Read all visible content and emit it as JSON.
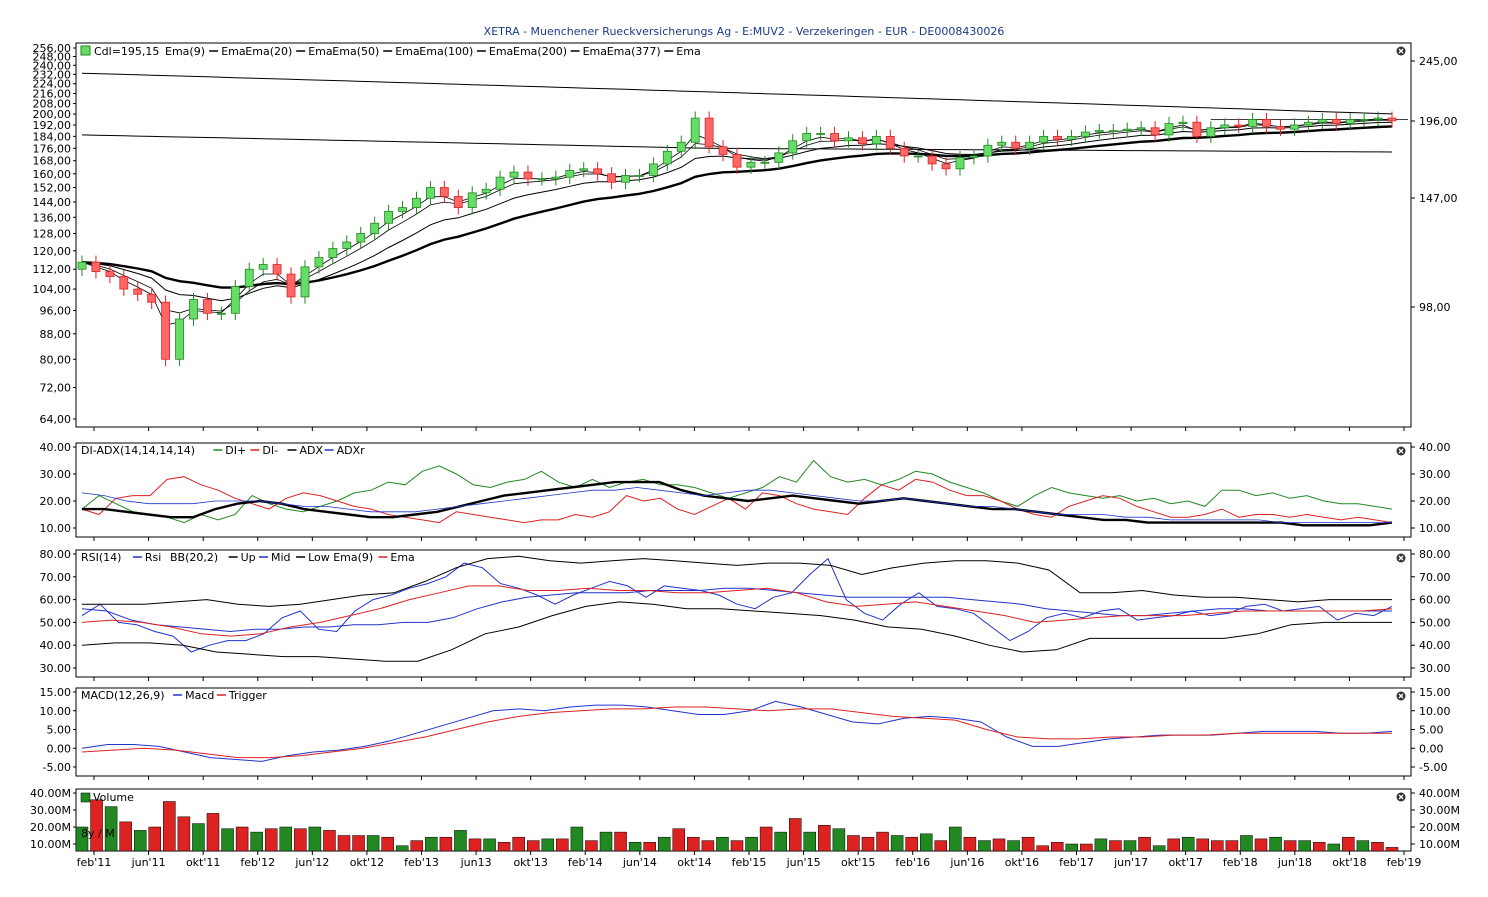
{
  "title": "XETRA - Muenchener Rueckversicherungs Ag - E:MUV2 - Verzekeringen - EUR - DE0008430026",
  "colors": {
    "up": "#66dd66",
    "down": "#ff6666",
    "green": "#228822",
    "red": "#dd2222",
    "blue": "#2233cc",
    "black": "#000000",
    "grid": "#cccccc",
    "text": "#000000",
    "title": "#1a3a8a"
  },
  "chart_data": [
    {
      "type": "candlestick",
      "panel": "price",
      "legend": [
        "Cdl=195,15",
        "Ema(9)",
        "Ema",
        "Ema(20)",
        "Ema",
        "Ema(50)",
        "Ema",
        "Ema(100)",
        "Ema",
        "Ema(200)",
        "Ema",
        "Ema(377)",
        "Ema"
      ],
      "y_left_ticks": [
        "256,00",
        "248,00",
        "240,00",
        "232,00",
        "224,00",
        "216,00",
        "208,00",
        "200,00",
        "192,00",
        "184,00",
        "176,00",
        "168,00",
        "160,00",
        "152,00",
        "144,00",
        "136,00",
        "128,00",
        "120,00",
        "112,00",
        "104,00",
        "96,00",
        "88,00",
        "80,00",
        "72,00",
        "64,00"
      ],
      "y_right_ticks": [
        "245,00",
        "196,00",
        "147,00",
        "98,00"
      ],
      "x_ticks": [
        "feb'11",
        "jun'11",
        "okt'11",
        "feb'12",
        "jun'12",
        "okt'12",
        "feb'13",
        "jun13",
        "okt'13",
        "feb'14",
        "jun'14",
        "okt'14",
        "feb'15",
        "jun'15",
        "okt'15",
        "feb'16",
        "jun'16",
        "okt'16",
        "feb'17",
        "jun'17",
        "okt'17",
        "feb'18",
        "jun'18",
        "okt'18",
        "feb'19"
      ],
      "ylim": [
        62,
        258
      ],
      "scale": "log",
      "close": [
        115,
        111,
        109,
        104,
        102,
        99,
        80,
        93,
        100,
        95,
        95,
        105,
        112,
        114,
        110,
        101,
        113,
        117,
        121,
        124,
        128,
        133,
        139,
        141,
        146,
        152,
        147,
        141,
        149,
        151,
        158,
        161,
        157,
        157,
        158,
        162,
        163,
        160,
        155,
        159,
        159,
        166,
        174,
        180,
        197,
        177,
        172,
        164,
        167,
        167,
        173,
        181,
        186,
        186,
        181,
        183,
        179,
        184,
        176,
        171,
        171,
        166,
        163,
        170,
        171,
        178,
        180,
        176,
        180,
        184,
        182,
        184,
        187,
        188,
        188,
        189,
        190,
        185,
        193,
        194,
        184,
        190,
        192,
        191,
        196,
        191,
        189,
        192,
        194,
        196,
        193,
        196,
        196,
        197,
        195
      ]
    },
    {
      "type": "line",
      "panel": "DI-ADX",
      "legend": [
        "DI-ADX(14,14,14,14)",
        "DI+",
        "DI-",
        "ADX",
        "ADXr"
      ],
      "y_ticks": [
        "40.00",
        "30.00",
        "20.00",
        "10.00"
      ],
      "ylim": [
        9,
        40
      ],
      "series": [
        {
          "name": "DI+",
          "values": [
            17,
            22,
            19,
            16,
            15,
            14,
            12,
            15,
            13,
            15,
            22,
            19,
            17,
            16,
            18,
            20,
            23,
            24,
            27,
            26,
            31,
            33,
            30,
            26,
            25,
            27,
            28,
            31,
            27,
            25,
            28,
            25,
            27,
            28,
            26,
            26,
            25,
            23,
            21,
            23,
            25,
            29,
            27,
            35,
            29,
            27,
            28,
            26,
            28,
            31,
            30,
            27,
            25,
            23,
            20,
            18,
            22,
            25,
            23,
            22,
            21,
            22,
            20,
            21,
            19,
            20,
            18,
            24,
            24,
            22,
            23,
            21,
            22,
            20,
            19,
            19,
            18,
            17
          ]
        },
        {
          "name": "DI-",
          "values": [
            17,
            15,
            21,
            22,
            22,
            28,
            29,
            26,
            24,
            21,
            19,
            17,
            21,
            23,
            22,
            20,
            18,
            17,
            15,
            14,
            13,
            12,
            16,
            15,
            14,
            13,
            12,
            13,
            13,
            15,
            14,
            16,
            22,
            20,
            21,
            17,
            15,
            18,
            21,
            17,
            23,
            22,
            19,
            17,
            16,
            15,
            21,
            26,
            24,
            28,
            27,
            24,
            22,
            22,
            20,
            17,
            15,
            14,
            18,
            20,
            22,
            21,
            18,
            16,
            14,
            14,
            15,
            17,
            14,
            15,
            15,
            14,
            15,
            14,
            13,
            14,
            13,
            12
          ]
        },
        {
          "name": "ADX",
          "values": [
            17,
            17,
            16,
            15,
            14,
            14,
            17,
            19,
            20,
            19,
            17,
            16,
            15,
            14,
            14,
            15,
            16,
            18,
            20,
            22,
            23,
            24,
            25,
            26,
            27,
            27,
            27,
            24,
            22,
            21,
            20,
            21,
            22,
            21,
            20,
            19,
            20,
            21,
            20,
            19,
            18,
            17,
            17,
            16,
            15,
            14,
            13,
            13,
            12,
            12,
            12,
            12,
            12,
            12,
            12,
            11,
            11,
            11,
            11,
            12
          ]
        },
        {
          "name": "ADXr",
          "values": [
            23,
            22,
            20,
            19,
            19,
            19,
            20,
            20,
            20,
            19,
            18,
            18,
            17,
            16,
            16,
            16,
            17,
            18,
            19,
            20,
            21,
            22,
            23,
            24,
            24,
            25,
            24,
            23,
            22,
            23,
            24,
            24,
            23,
            22,
            21,
            20,
            20,
            21,
            20,
            19,
            18,
            18,
            17,
            16,
            15,
            15,
            15,
            14,
            14,
            13,
            13,
            13,
            13,
            13,
            12,
            12,
            12,
            12,
            12,
            12
          ]
        }
      ]
    },
    {
      "type": "line",
      "panel": "RSI",
      "legend": [
        "RSI(14)",
        "Rsi",
        "BB(20,2)",
        "Up",
        "Mid",
        "Low",
        "Ema(9)",
        "Ema"
      ],
      "y_ticks": [
        "80.00",
        "70.00",
        "60.00",
        "50.00",
        "40.00",
        "30.00"
      ],
      "ylim": [
        29,
        82
      ],
      "series": [
        {
          "name": "Rsi",
          "values": [
            53,
            58,
            50,
            49,
            46,
            44,
            37,
            40,
            42,
            42,
            45,
            52,
            55,
            47,
            46,
            55,
            60,
            62,
            65,
            67,
            70,
            76,
            74,
            67,
            65,
            62,
            58,
            62,
            65,
            68,
            66,
            61,
            66,
            65,
            64,
            62,
            58,
            56,
            61,
            63,
            71,
            78,
            60,
            54,
            51,
            58,
            63,
            57,
            56,
            54,
            48,
            42,
            46,
            52,
            54,
            52,
            55,
            56,
            51,
            52,
            53,
            55,
            53,
            54,
            57,
            58,
            55,
            56,
            57,
            51,
            54,
            53,
            57
          ]
        },
        {
          "name": "Mid",
          "values": [
            56,
            55,
            51,
            49,
            48,
            47,
            46,
            47,
            47,
            48,
            48,
            49,
            49,
            50,
            50,
            52,
            56,
            59,
            61,
            62,
            63,
            63,
            63,
            64,
            64,
            64,
            65,
            65,
            64,
            63,
            62,
            61,
            61,
            61,
            61,
            61,
            60,
            59,
            58,
            56,
            55,
            54,
            53,
            53,
            54,
            55,
            56,
            56,
            55,
            55,
            55,
            55,
            55,
            55
          ]
        },
        {
          "name": "Up",
          "values": [
            58,
            58,
            58,
            59,
            60,
            58,
            57,
            58,
            60,
            62,
            63,
            68,
            74,
            78,
            79,
            77,
            76,
            77,
            78,
            77,
            76,
            75,
            76,
            76,
            75,
            71,
            74,
            76,
            77,
            77,
            76,
            73,
            63,
            63,
            64,
            62,
            61,
            61,
            60,
            59,
            60,
            60,
            60
          ]
        },
        {
          "name": "Low",
          "values": [
            40,
            41,
            41,
            40,
            37,
            36,
            35,
            35,
            34,
            33,
            33,
            38,
            45,
            48,
            53,
            57,
            59,
            58,
            56,
            56,
            55,
            54,
            53,
            51,
            48,
            47,
            44,
            40,
            37,
            38,
            43,
            43,
            43,
            43,
            43,
            45,
            49,
            50,
            50,
            50
          ]
        },
        {
          "name": "Ema",
          "values": [
            50,
            51,
            50,
            48,
            45,
            44,
            45,
            48,
            50,
            53,
            56,
            60,
            63,
            66,
            66,
            64,
            64,
            65,
            64,
            64,
            63,
            63,
            64,
            65,
            63,
            59,
            57,
            58,
            59,
            57,
            55,
            53,
            50,
            51,
            52,
            53,
            53,
            53,
            54,
            55,
            55,
            55,
            55,
            55,
            56
          ]
        }
      ]
    },
    {
      "type": "line",
      "panel": "MACD",
      "legend": [
        "MACD(12,26,9)",
        "Macd",
        "Trigger"
      ],
      "y_ticks": [
        "15.00",
        "10.00",
        "5.00",
        "0.00",
        "-5.00"
      ],
      "ylim": [
        -5.5,
        15.5
      ],
      "series": [
        {
          "name": "Macd",
          "values": [
            0,
            1,
            1,
            0.5,
            -1,
            -2.5,
            -3,
            -3.5,
            -2,
            -1,
            -0.5,
            0.5,
            2,
            4,
            6,
            8,
            10,
            10.5,
            10,
            11,
            11.5,
            11.5,
            11,
            10,
            9,
            9,
            10,
            12.5,
            11,
            9,
            7,
            6.5,
            8,
            8.5,
            8,
            7,
            3,
            0.5,
            0.5,
            1.5,
            2.5,
            3,
            3.5,
            3.5,
            3.5,
            4,
            4.5,
            4.5,
            4.5,
            4,
            4,
            4.5
          ]
        },
        {
          "name": "Trigger",
          "values": [
            -1,
            -0.5,
            0,
            -0.5,
            -1.5,
            -2.5,
            -2.5,
            -2,
            -1,
            0,
            1.5,
            3,
            5,
            7,
            8.5,
            9.5,
            10,
            10.5,
            10.5,
            11,
            11,
            10.5,
            10,
            10.5,
            10.5,
            9.5,
            8.5,
            8,
            7.5,
            5,
            3,
            2.5,
            2.5,
            3,
            3,
            3.5,
            3.5,
            4,
            4,
            4,
            4,
            4,
            4
          ]
        }
      ]
    },
    {
      "type": "bar",
      "panel": "Volume",
      "legend": [
        "Volume"
      ],
      "label": "8y / M",
      "y_ticks": [
        "40.00M",
        "30.00M",
        "20.00M",
        "10.00M"
      ],
      "ylim": [
        4,
        41
      ],
      "values": [
        20,
        36,
        32,
        23,
        18,
        20,
        35,
        26,
        22,
        28,
        19,
        20,
        17,
        19,
        20,
        19,
        20,
        18,
        15,
        15,
        15,
        14,
        9,
        12,
        14,
        14,
        18,
        13,
        13,
        11,
        14,
        12,
        13,
        13,
        20,
        12,
        17,
        17,
        11,
        11,
        14,
        19,
        14,
        12,
        14,
        12,
        14,
        20,
        17,
        25,
        17,
        21,
        19,
        15,
        14,
        17,
        15,
        14,
        16,
        12,
        20,
        14,
        12,
        13,
        12,
        14,
        9,
        11,
        10,
        10,
        13,
        12,
        12,
        14,
        9,
        13,
        14,
        13,
        12,
        12,
        15,
        13,
        14,
        12,
        12,
        11,
        10,
        14,
        12,
        11,
        8
      ]
    }
  ]
}
